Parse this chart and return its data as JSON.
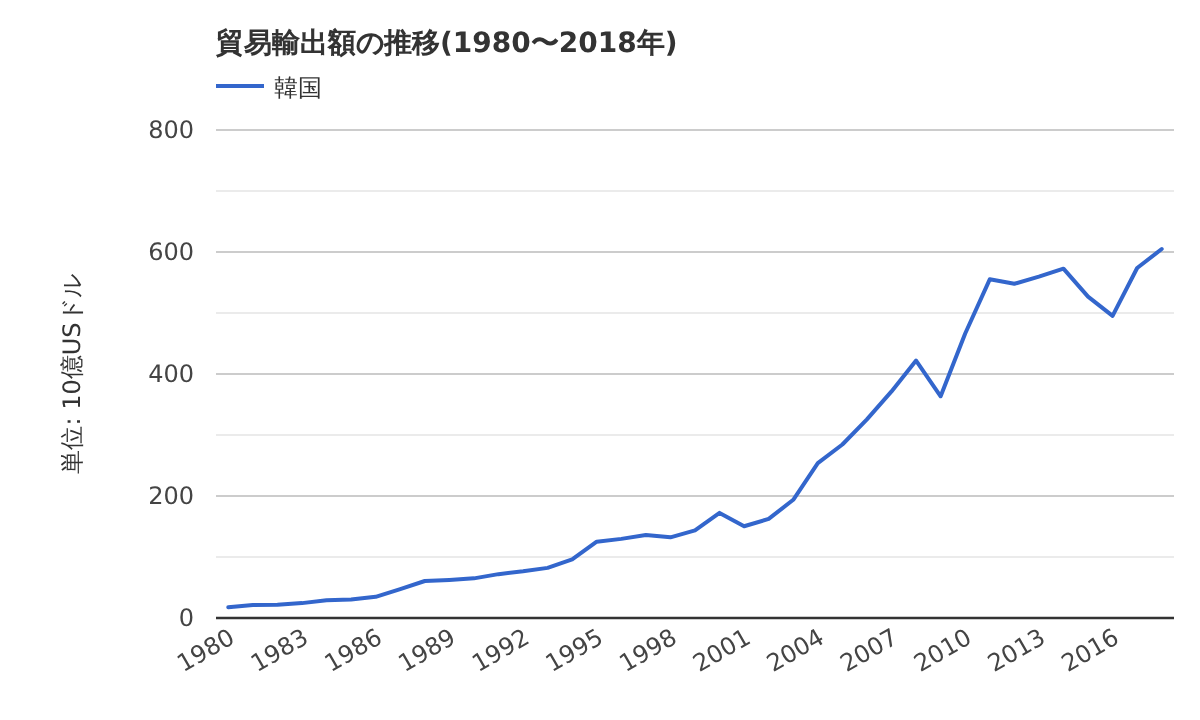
{
  "chart_data": {
    "type": "line",
    "title": "貿易輸出額の推移(1980〜2018年)",
    "ylabel": "単位: 10億USドル",
    "x": [
      1980,
      1981,
      1982,
      1983,
      1984,
      1985,
      1986,
      1987,
      1988,
      1989,
      1990,
      1991,
      1992,
      1993,
      1994,
      1995,
      1996,
      1997,
      1998,
      1999,
      2000,
      2001,
      2002,
      2003,
      2004,
      2005,
      2006,
      2007,
      2008,
      2009,
      2010,
      2011,
      2012,
      2013,
      2014,
      2015,
      2016,
      2017,
      2018
    ],
    "series": [
      {
        "name": "韓国",
        "color": "#3366cc",
        "values": [
          17.5,
          21.3,
          21.9,
          24.4,
          29.2,
          30.3,
          34.7,
          47.3,
          60.7,
          62.4,
          65.0,
          71.9,
          76.6,
          82.2,
          96.0,
          125.1,
          129.7,
          136.2,
          132.3,
          143.7,
          172.3,
          150.4,
          162.5,
          193.8,
          253.8,
          284.4,
          325.5,
          371.5,
          422.0,
          363.5,
          466.4,
          555.2,
          547.9,
          559.6,
          572.7,
          526.8,
          495.4,
          573.7,
          604.9
        ]
      }
    ],
    "xlim": [
      1979.5,
      2018.5
    ],
    "xticks": [
      1980,
      1983,
      1986,
      1989,
      1992,
      1995,
      1998,
      2001,
      2004,
      2007,
      2010,
      2013,
      2016
    ],
    "ylim": [
      0,
      800
    ],
    "yticks": [
      0,
      {
        "value": 100,
        "label": null
      },
      200,
      {
        "value": 300,
        "label": null
      },
      400,
      {
        "value": 500,
        "label": null
      },
      600,
      {
        "value": 700,
        "label": null
      },
      800
    ],
    "grid": "y",
    "legend": "top left",
    "marker": "none",
    "line_style": "solid"
  }
}
